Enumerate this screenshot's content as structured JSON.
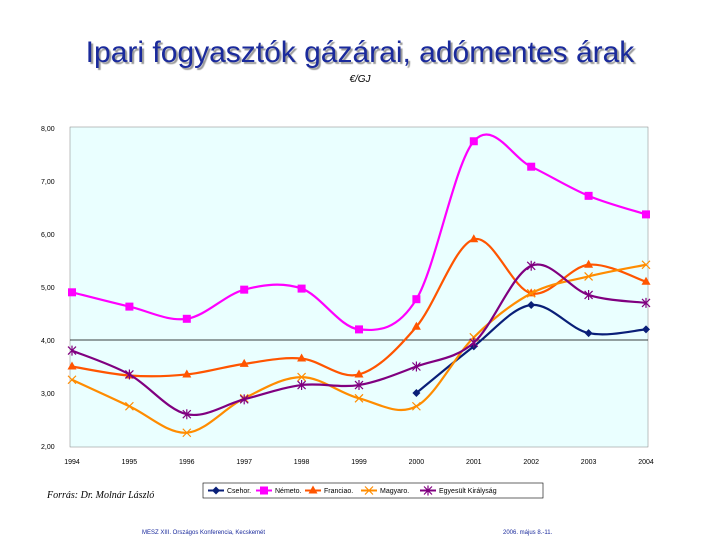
{
  "title": "Ipari fogyasztók gázárai, adómentes árak",
  "unit": "€/GJ",
  "source": "Forrás: Dr. Molnár László",
  "footer": {
    "left": "MESZ XIII. Országos Konferencia, Kecskemét",
    "right": "2006. május 8.-11."
  },
  "colors": {
    "plot_background": "#eaffff",
    "reference_line": "#000000"
  },
  "chart_data": {
    "type": "line",
    "title": "Ipari fogyasztók gázárai, adómentes árak",
    "ylabel": "€/GJ",
    "categories": [
      "1994",
      "1995",
      "1996",
      "1997",
      "1998",
      "1999",
      "2000",
      "2001",
      "2002",
      "2003",
      "2004"
    ],
    "y_tick_labels": [
      "8,00",
      "7,00",
      "6,00",
      "5,00",
      "4,00",
      "3,00",
      "2,00"
    ],
    "ylim": [
      2,
      8
    ],
    "reference_line": 4.0,
    "grid": false,
    "smooth": true,
    "legend_position": "bottom",
    "series": [
      {
        "name": "Csehor.",
        "color": "#0a1f78",
        "marker": "diamond",
        "values": [
          null,
          null,
          null,
          null,
          null,
          null,
          3.0,
          3.88,
          4.66,
          4.13,
          4.2
        ]
      },
      {
        "name": "Németo.",
        "color": "#ff00ff",
        "marker": "square",
        "values": [
          4.9,
          4.63,
          4.4,
          4.95,
          4.97,
          4.2,
          4.77,
          7.75,
          7.27,
          6.72,
          6.37
        ]
      },
      {
        "name": "Franciao.",
        "color": "#ff5500",
        "marker": "triangle",
        "values": [
          3.5,
          3.33,
          3.35,
          3.55,
          3.65,
          3.35,
          4.25,
          5.9,
          4.88,
          5.42,
          5.1
        ]
      },
      {
        "name": "Magyaro.",
        "color": "#ff8c00",
        "marker": "x",
        "values": [
          3.25,
          2.75,
          2.25,
          2.9,
          3.3,
          2.9,
          2.75,
          4.05,
          4.88,
          5.2,
          5.42
        ]
      },
      {
        "name": "Egyesült Királyság",
        "color": "#800080",
        "marker": "star",
        "values": [
          3.8,
          3.35,
          2.6,
          2.88,
          3.15,
          3.15,
          3.5,
          3.95,
          5.4,
          4.85,
          4.7
        ]
      }
    ]
  }
}
